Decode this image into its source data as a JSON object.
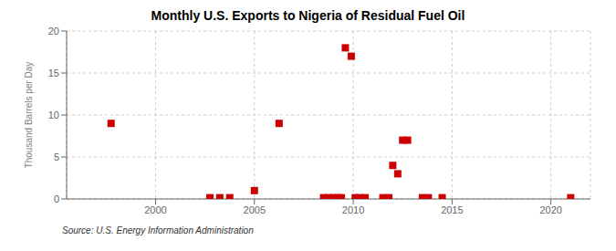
{
  "chart_data": {
    "type": "scatter",
    "title": "Monthly U.S. Exports to Nigeria of Residual Fuel Oil",
    "ylabel": "Thousand Barrels per Day",
    "annotation": "Source: U.S. Energy Information Administration",
    "color": "#cc0000",
    "marker": "square",
    "grid": true,
    "xlim": [
      1995.5,
      2022
    ],
    "xticks": [
      2000,
      2005,
      2010,
      2015,
      2020
    ],
    "ylim": [
      0,
      20
    ],
    "yticks": [
      0,
      5,
      10,
      15,
      20
    ],
    "x": [
      1997.75,
      2002.75,
      2003.25,
      2003.75,
      2005.0,
      2006.25,
      2008.5,
      2008.75,
      2009.0,
      2009.2,
      2009.4,
      2009.6,
      2009.9,
      2010.1,
      2010.3,
      2010.6,
      2011.5,
      2011.8,
      2012.0,
      2012.25,
      2012.5,
      2012.75,
      2013.5,
      2013.8,
      2014.5,
      2021.0
    ],
    "values": [
      9.0,
      0.15,
      0.15,
      0.15,
      1.0,
      9.0,
      0.15,
      0.15,
      0.15,
      0.15,
      0.15,
      18.0,
      17.0,
      0.15,
      0.15,
      0.15,
      0.15,
      0.15,
      4.0,
      3.0,
      7.0,
      7.0,
      0.15,
      0.15,
      0.15,
      0.15
    ]
  }
}
